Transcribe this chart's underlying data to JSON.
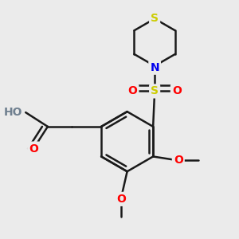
{
  "background_color": "#ebebeb",
  "bond_color": "#1a1a1a",
  "bond_width": 1.8,
  "atom_colors": {
    "O": "#ff0000",
    "N": "#0000ee",
    "S": "#cccc00",
    "H": "#708090",
    "C": "#1a1a1a"
  },
  "figsize": [
    3.0,
    3.0
  ],
  "dpi": 100
}
